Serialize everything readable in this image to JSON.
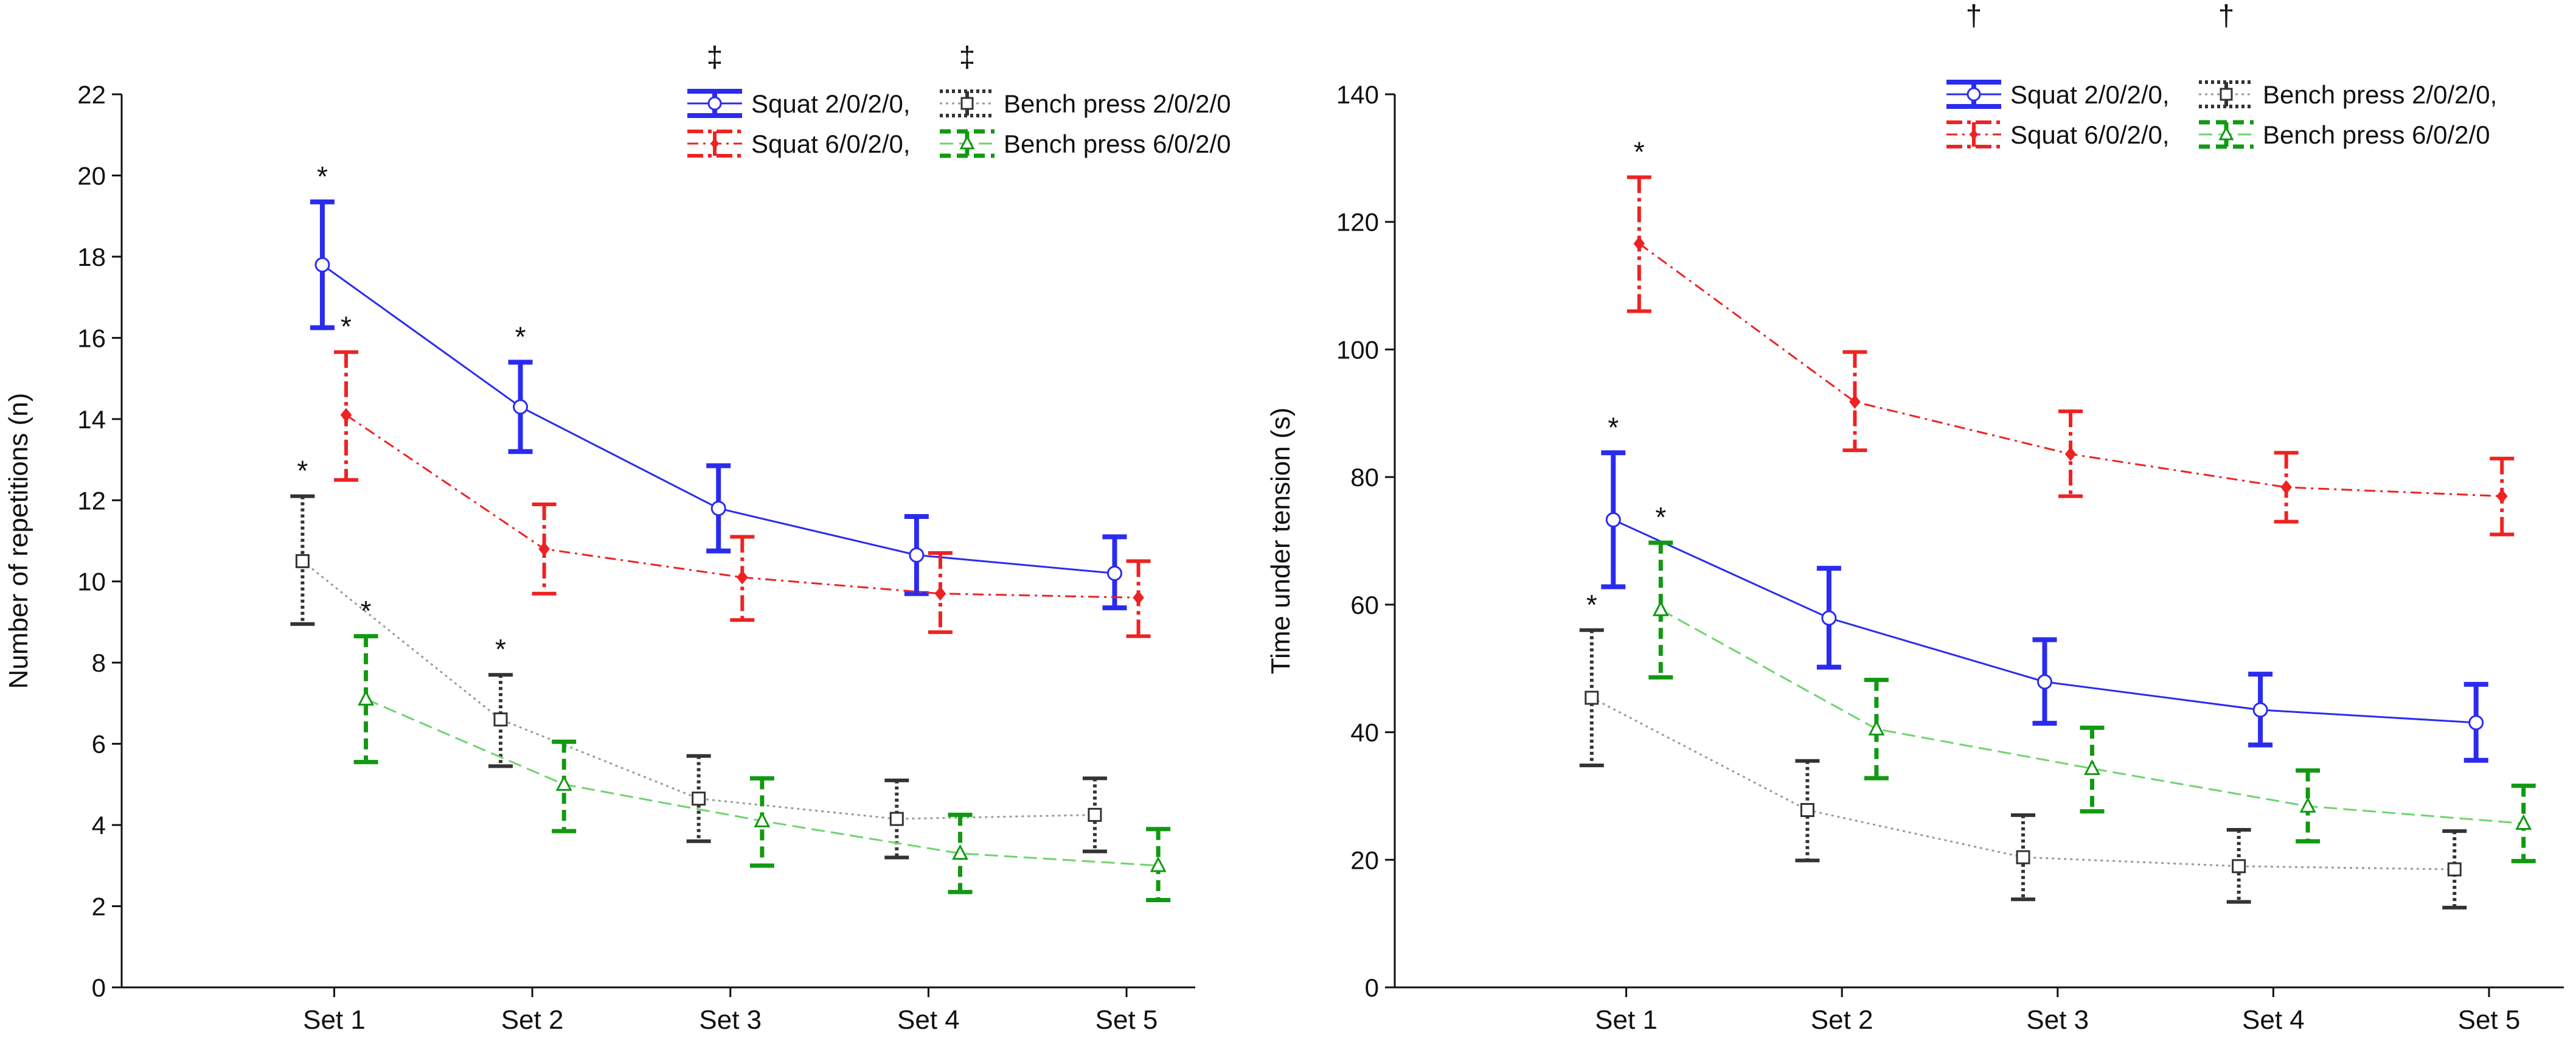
{
  "colors": {
    "squat_2020": "#2b2bf0",
    "squat_6020": "#ee2222",
    "bench_2020": "#333333",
    "bench_6020": "#119911",
    "bench_2020_line": "#9a9a9a",
    "bench_6020_line": "#6fd36f",
    "axis": "#111111"
  },
  "chart_data": [
    {
      "type": "line",
      "title": "",
      "xlabel": "",
      "ylabel": "Number of repetitions (n)",
      "categories": [
        "Set 1",
        "Set 2",
        "Set 3",
        "Set 4",
        "Set 5"
      ],
      "ylim": [
        0,
        22
      ],
      "yticks": [
        0,
        2,
        4,
        6,
        8,
        10,
        12,
        14,
        16,
        18,
        20,
        22
      ],
      "grid": false,
      "legend_position": "top-right",
      "legend_symbols": [
        "‡",
        "‡"
      ],
      "series": [
        {
          "name": "Squat 2/0/2/0,",
          "values": [
            17.8,
            14.3,
            11.8,
            10.65,
            10.2
          ],
          "error_low": [
            16.25,
            13.2,
            10.75,
            9.7,
            9.35
          ],
          "error_high": [
            19.35,
            15.4,
            12.85,
            11.6,
            11.1
          ],
          "markers": [
            "*",
            "*",
            "",
            "",
            ""
          ],
          "marker": "circle",
          "line": "solid",
          "offset": -0.06
        },
        {
          "name": "Squat 6/0/2/0,",
          "values": [
            14.1,
            10.8,
            10.1,
            9.7,
            9.6
          ],
          "error_low": [
            12.5,
            9.7,
            9.05,
            8.75,
            8.65
          ],
          "error_high": [
            15.65,
            11.9,
            11.1,
            10.7,
            10.5
          ],
          "markers": [
            "*",
            "",
            "",
            "",
            ""
          ],
          "marker": "diamond",
          "line": "dashdot",
          "offset": 0.06
        },
        {
          "name": "Bench press 2/0/2/0",
          "values": [
            10.5,
            6.6,
            4.65,
            4.15,
            4.25
          ],
          "error_low": [
            8.95,
            5.45,
            3.6,
            3.2,
            3.35
          ],
          "error_high": [
            12.1,
            7.7,
            5.7,
            5.1,
            5.15
          ],
          "markers": [
            "*",
            "*",
            "",
            "",
            ""
          ],
          "marker": "square",
          "line": "dotted",
          "offset": -0.16
        },
        {
          "name": "Bench press 6/0/2/0",
          "values": [
            7.1,
            5.0,
            4.1,
            3.3,
            3.0
          ],
          "error_low": [
            5.55,
            3.85,
            3.0,
            2.35,
            2.15
          ],
          "error_high": [
            8.65,
            6.05,
            5.15,
            4.25,
            3.9
          ],
          "markers": [
            "*",
            "",
            "",
            "",
            ""
          ],
          "marker": "triangle",
          "line": "dashed",
          "offset": 0.16
        }
      ]
    },
    {
      "type": "line",
      "title": "",
      "xlabel": "",
      "ylabel": "Time under tension (s)",
      "categories": [
        "Set 1",
        "Set 2",
        "Set 3",
        "Set 4",
        "Set 5"
      ],
      "ylim": [
        0,
        140
      ],
      "yticks": [
        0,
        20,
        40,
        60,
        80,
        100,
        120,
        140
      ],
      "grid": false,
      "legend_position": "top-right",
      "legend_symbols": [
        "†",
        "†"
      ],
      "series": [
        {
          "name": "Squat 2/0/2/0,",
          "values": [
            73.3,
            57.9,
            47.9,
            43.5,
            41.5
          ],
          "error_low": [
            62.8,
            50.2,
            41.4,
            38.0,
            35.6
          ],
          "error_high": [
            83.8,
            65.7,
            54.5,
            49.1,
            47.5
          ],
          "markers": [
            "*",
            "",
            "",
            "",
            ""
          ],
          "marker": "circle",
          "line": "solid",
          "offset": -0.06
        },
        {
          "name": "Squat 6/0/2/0,",
          "values": [
            116.6,
            91.8,
            83.6,
            78.4,
            77.0
          ],
          "error_low": [
            106.0,
            84.2,
            77.0,
            73.0,
            71.0
          ],
          "error_high": [
            127.0,
            99.6,
            90.3,
            83.8,
            82.9
          ],
          "markers": [
            "*",
            "",
            "",
            "",
            ""
          ],
          "marker": "diamond",
          "line": "dashdot",
          "offset": 0.06
        },
        {
          "name": "Bench press 2/0/2/0,",
          "values": [
            45.4,
            27.8,
            20.4,
            19.0,
            18.5
          ],
          "error_low": [
            34.8,
            19.9,
            13.8,
            13.4,
            12.5
          ],
          "error_high": [
            56.0,
            35.5,
            27.0,
            24.7,
            24.5
          ],
          "markers": [
            "*",
            "",
            "",
            "",
            ""
          ],
          "marker": "square",
          "line": "dotted",
          "offset": -0.16
        },
        {
          "name": "Bench press 6/0/2/0",
          "values": [
            59.2,
            40.5,
            34.3,
            28.4,
            25.7
          ],
          "error_low": [
            48.6,
            32.8,
            27.6,
            22.9,
            19.8
          ],
          "error_high": [
            69.7,
            48.2,
            40.7,
            34.0,
            31.6
          ],
          "markers": [
            "*",
            "",
            "",
            "",
            ""
          ],
          "marker": "triangle",
          "line": "dashed",
          "offset": 0.16
        }
      ]
    }
  ]
}
